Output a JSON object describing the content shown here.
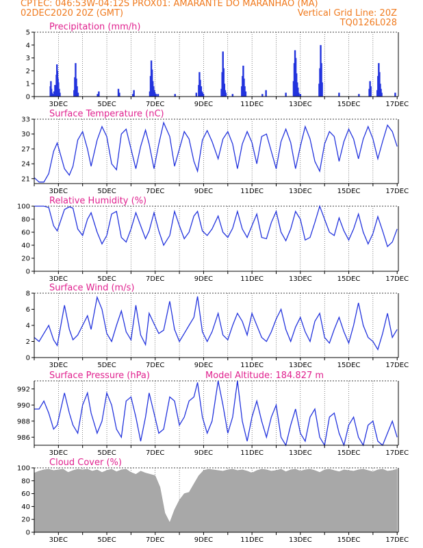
{
  "header": {
    "line1_left": "CPTEC:  046:53W-04:12S  PROX01: AMARANTE DO MARANHAO (MA)",
    "line2_left": "02DEC2020 20Z (GMT)",
    "line2_right": "Vertical Grid Line: 20Z",
    "line3_right": "TQ0126L028"
  },
  "colors": {
    "header": "#f07a1e",
    "title": "#e0208e",
    "series": "#2233dd",
    "cloud": "#a8a8a8"
  },
  "chart_data": [
    {
      "type": "bar",
      "title": "Precipitation (mm/h)",
      "ylim": [
        0,
        5
      ],
      "yticks": [
        0,
        1,
        2,
        3,
        4,
        5
      ],
      "xticklabels": [
        "3DEC",
        "5DEC",
        "7DEC",
        "9DEC",
        "11DEC",
        "13DEC",
        "15DEC",
        "17DEC"
      ],
      "series_days": [
        [
          2.9,
          3.05,
          0.9
        ],
        [
          3.6,
          3.75,
          0.6
        ],
        [
          4.5,
          4.6,
          0.3
        ],
        [
          5.45,
          5.55,
          0.5
        ],
        [
          6.0,
          6.15,
          0.4
        ],
        [
          6.75,
          6.95,
          2.8
        ],
        [
          8.85,
          9.05,
          1.6
        ],
        [
          9.7,
          9.85,
          3.5
        ],
        [
          10.5,
          10.65,
          2.5
        ],
        [
          12.6,
          12.85,
          3.6
        ],
        [
          13.7,
          13.85,
          4.0
        ],
        [
          15.7,
          15.85,
          1.4
        ],
        [
          16.1,
          16.25,
          2.6
        ],
        [
          16.85,
          16.95,
          0.3
        ]
      ],
      "values_note": "",
      "x": [
        2.67,
        2.69,
        2.71,
        2.73,
        2.76,
        2.82,
        2.86,
        2.92,
        2.94,
        2.96,
        2.98,
        3.0,
        3.03,
        3.06,
        3.65,
        3.68,
        3.71,
        3.74,
        3.77,
        3.81,
        4.62,
        4.67,
        5.48,
        5.52,
        6.08,
        6.12,
        6.78,
        6.81,
        6.84,
        6.87,
        6.9,
        6.93,
        6.96,
        6.99,
        7.04,
        7.12,
        7.82,
        8.7,
        8.8,
        8.83,
        8.86,
        8.9,
        8.93,
        8.96,
        8.99,
        9.74,
        9.77,
        9.8,
        9.83,
        9.86,
        9.89,
        9.92,
        10.2,
        10.58,
        10.61,
        10.64,
        10.67,
        10.7,
        10.74,
        11.43,
        11.58,
        12.4,
        12.72,
        12.75,
        12.78,
        12.81,
        12.84,
        12.87,
        12.9,
        12.93,
        13.0,
        13.78,
        13.81,
        13.84,
        13.87,
        13.9,
        14.6,
        15.42,
        15.85,
        15.88,
        15.91,
        16.18,
        16.21,
        16.24,
        16.27,
        16.3,
        16.33,
        16.36,
        16.92
      ],
      "values": [
        0.8,
        1.2,
        0.6,
        0.3,
        0.2,
        0.4,
        0.9,
        1.7,
        2.5,
        2.0,
        1.4,
        1.1,
        0.6,
        0.3,
        0.5,
        1.5,
        2.6,
        1.4,
        0.8,
        0.3,
        0.2,
        0.4,
        0.6,
        0.3,
        0.2,
        0.5,
        0.4,
        1.6,
        2.8,
        2.1,
        1.2,
        0.8,
        0.5,
        0.3,
        0.2,
        0.2,
        0.2,
        0.3,
        0.9,
        1.9,
        1.3,
        0.8,
        0.4,
        0.3,
        0.2,
        0.6,
        1.9,
        3.5,
        2.2,
        1.0,
        0.5,
        0.3,
        0.2,
        0.8,
        1.6,
        2.4,
        1.4,
        0.8,
        0.4,
        0.2,
        0.5,
        0.3,
        1.2,
        2.6,
        3.6,
        3.0,
        1.8,
        1.1,
        0.7,
        0.3,
        0.2,
        1.0,
        2.2,
        4.0,
        2.6,
        1.1,
        0.3,
        0.2,
        0.6,
        1.2,
        0.8,
        0.5,
        1.6,
        2.6,
        1.9,
        1.0,
        0.6,
        0.3,
        0.3
      ]
    },
    {
      "type": "line",
      "title": "Surface Temperature (nC)",
      "ylim": [
        20,
        33
      ],
      "yticks": [
        21,
        24,
        27,
        30,
        33
      ],
      "xticklabels": [
        "3DEC",
        "5DEC",
        "7DEC",
        "9DEC",
        "11DEC",
        "13DEC",
        "15DEC",
        "17DEC"
      ],
      "x": [
        2.0,
        2.2,
        2.4,
        2.6,
        2.8,
        2.95,
        3.25,
        3.45,
        3.6,
        3.8,
        4.0,
        4.2,
        4.35,
        4.6,
        4.8,
        5.0,
        5.2,
        5.4,
        5.6,
        5.8,
        6.0,
        6.2,
        6.4,
        6.6,
        6.75,
        6.95,
        7.15,
        7.35,
        7.6,
        7.8,
        8.0,
        8.2,
        8.4,
        8.6,
        8.75,
        8.95,
        9.15,
        9.35,
        9.6,
        9.8,
        10.0,
        10.2,
        10.4,
        10.6,
        10.8,
        11.0,
        11.2,
        11.4,
        11.6,
        11.8,
        12.0,
        12.2,
        12.4,
        12.6,
        12.8,
        13.0,
        13.2,
        13.4,
        13.6,
        13.8,
        14.0,
        14.2,
        14.4,
        14.6,
        14.8,
        15.0,
        15.2,
        15.4,
        15.6,
        15.8,
        16.0,
        16.2,
        16.4,
        16.6,
        16.8,
        17.0
      ],
      "values": [
        21.2,
        20.3,
        20.3,
        22.0,
        26.5,
        28.2,
        23.0,
        21.7,
        23.5,
        28.8,
        30.5,
        27.0,
        23.5,
        28.8,
        31.5,
        29.5,
        24.0,
        22.8,
        30.0,
        31.0,
        27.0,
        23.0,
        27.5,
        30.8,
        28.0,
        23.0,
        28.0,
        32.3,
        29.5,
        23.5,
        27.0,
        30.5,
        29.0,
        24.5,
        22.5,
        28.8,
        30.7,
        28.5,
        25.0,
        29.0,
        30.5,
        28.0,
        23.0,
        28.0,
        30.5,
        28.3,
        24.0,
        29.5,
        30.0,
        26.5,
        23.0,
        28.5,
        31.0,
        28.3,
        23.0,
        27.5,
        31.5,
        29.0,
        24.5,
        22.5,
        28.0,
        30.5,
        29.5,
        24.5,
        28.5,
        31.0,
        29.0,
        25.0,
        29.0,
        31.5,
        29.0,
        25.0,
        28.5,
        31.8,
        30.5,
        27.5
      ]
    },
    {
      "type": "line",
      "title": "Relative Humidity (%)",
      "ylim": [
        0,
        100
      ],
      "yticks": [
        0,
        20,
        40,
        60,
        80,
        100
      ],
      "xticklabels": [
        "3DEC",
        "5DEC",
        "7DEC",
        "9DEC",
        "11DEC",
        "13DEC",
        "15DEC",
        "17DEC"
      ],
      "x": [
        2.0,
        2.2,
        2.4,
        2.6,
        2.8,
        2.95,
        3.25,
        3.45,
        3.6,
        3.8,
        4.0,
        4.2,
        4.35,
        4.6,
        4.8,
        5.0,
        5.2,
        5.4,
        5.6,
        5.8,
        6.0,
        6.2,
        6.4,
        6.6,
        6.75,
        6.95,
        7.15,
        7.35,
        7.6,
        7.8,
        8.0,
        8.2,
        8.4,
        8.6,
        8.75,
        8.95,
        9.15,
        9.35,
        9.6,
        9.8,
        10.0,
        10.2,
        10.4,
        10.6,
        10.8,
        11.0,
        11.2,
        11.4,
        11.6,
        11.8,
        12.0,
        12.2,
        12.4,
        12.6,
        12.8,
        13.0,
        13.2,
        13.4,
        13.6,
        13.8,
        14.0,
        14.2,
        14.4,
        14.6,
        14.8,
        15.0,
        15.2,
        15.4,
        15.6,
        15.8,
        16.0,
        16.2,
        16.4,
        16.6,
        16.8,
        17.0
      ],
      "values": [
        100,
        100,
        100,
        98,
        70,
        62,
        95,
        99,
        97,
        65,
        55,
        80,
        90,
        60,
        42,
        55,
        88,
        92,
        52,
        45,
        65,
        90,
        70,
        50,
        62,
        90,
        62,
        40,
        55,
        92,
        70,
        50,
        60,
        85,
        92,
        62,
        55,
        65,
        85,
        60,
        52,
        66,
        92,
        65,
        52,
        70,
        88,
        52,
        50,
        75,
        92,
        60,
        47,
        65,
        92,
        80,
        48,
        52,
        75,
        100,
        80,
        60,
        55,
        82,
        62,
        48,
        65,
        88,
        60,
        42,
        58,
        84,
        62,
        38,
        45,
        65
      ]
    },
    {
      "type": "line",
      "title": "Surface Wind (m/s)",
      "ylim": [
        0,
        8
      ],
      "yticks": [
        0,
        2,
        4,
        6,
        8
      ],
      "xticklabels": [
        "3DEC",
        "5DEC",
        "7DEC",
        "9DEC",
        "11DEC",
        "13DEC",
        "15DEC",
        "17DEC"
      ],
      "x": [
        2.0,
        2.2,
        2.4,
        2.6,
        2.8,
        2.95,
        3.25,
        3.45,
        3.6,
        3.8,
        4.0,
        4.2,
        4.35,
        4.6,
        4.8,
        5.0,
        5.2,
        5.4,
        5.6,
        5.8,
        6.0,
        6.2,
        6.4,
        6.6,
        6.75,
        6.95,
        7.15,
        7.35,
        7.6,
        7.8,
        8.0,
        8.2,
        8.4,
        8.6,
        8.75,
        8.95,
        9.15,
        9.35,
        9.6,
        9.8,
        10.0,
        10.2,
        10.4,
        10.6,
        10.8,
        11.0,
        11.2,
        11.4,
        11.6,
        11.8,
        12.0,
        12.2,
        12.4,
        12.6,
        12.8,
        13.0,
        13.2,
        13.4,
        13.6,
        13.8,
        14.0,
        14.2,
        14.4,
        14.6,
        14.8,
        15.0,
        15.2,
        15.4,
        15.6,
        15.8,
        16.0,
        16.2,
        16.4,
        16.6,
        16.8,
        17.0
      ],
      "values": [
        2.5,
        2.0,
        3.0,
        4.0,
        2.2,
        1.5,
        6.5,
        3.5,
        2.2,
        2.8,
        4.0,
        5.2,
        3.5,
        7.5,
        6.0,
        3.0,
        2.0,
        4.0,
        5.8,
        3.2,
        2.2,
        6.5,
        2.8,
        1.6,
        5.5,
        4.2,
        3.0,
        3.4,
        7.0,
        3.5,
        2.0,
        3.0,
        4.0,
        5.0,
        7.6,
        3.2,
        2.0,
        3.2,
        5.5,
        2.8,
        2.2,
        4.0,
        5.5,
        4.5,
        2.8,
        5.5,
        4.0,
        2.5,
        2.0,
        3.2,
        4.8,
        6.0,
        3.5,
        2.0,
        3.8,
        5.0,
        3.2,
        2.0,
        4.5,
        5.5,
        2.5,
        1.8,
        3.5,
        5.0,
        3.2,
        1.8,
        4.0,
        6.8,
        4.0,
        2.5,
        2.0,
        1.0,
        3.0,
        5.5,
        2.5,
        3.5
      ]
    },
    {
      "type": "line",
      "title": "Surface Pressure (hPa)",
      "annotation": "Model Altitude: 184.827 m",
      "ylim": [
        985,
        993
      ],
      "yticks": [
        986,
        988,
        990,
        992
      ],
      "xticklabels": [
        "3DEC",
        "5DEC",
        "7DEC",
        "9DEC",
        "11DEC",
        "13DEC",
        "15DEC",
        "17DEC"
      ],
      "x": [
        2.0,
        2.2,
        2.4,
        2.6,
        2.8,
        2.95,
        3.25,
        3.45,
        3.6,
        3.8,
        4.0,
        4.2,
        4.35,
        4.6,
        4.8,
        5.0,
        5.2,
        5.4,
        5.6,
        5.8,
        6.0,
        6.2,
        6.4,
        6.6,
        6.75,
        6.95,
        7.15,
        7.35,
        7.6,
        7.8,
        8.0,
        8.2,
        8.4,
        8.6,
        8.75,
        8.95,
        9.15,
        9.35,
        9.6,
        9.8,
        10.0,
        10.2,
        10.4,
        10.6,
        10.8,
        11.0,
        11.2,
        11.4,
        11.6,
        11.8,
        12.0,
        12.2,
        12.4,
        12.6,
        12.8,
        13.0,
        13.2,
        13.4,
        13.6,
        13.8,
        14.0,
        14.2,
        14.4,
        14.6,
        14.8,
        15.0,
        15.2,
        15.4,
        15.6,
        15.8,
        16.0,
        16.2,
        16.4,
        16.6,
        16.8,
        17.0
      ],
      "values": [
        989.5,
        989.5,
        990.5,
        989.0,
        987.0,
        987.5,
        991.5,
        989.0,
        987.5,
        986.5,
        990.0,
        991.5,
        989.0,
        986.5,
        988.0,
        991.5,
        990.0,
        987.0,
        986.0,
        990.5,
        991.0,
        988.5,
        985.5,
        988.5,
        991.5,
        989.0,
        986.5,
        987.0,
        991.0,
        990.5,
        987.5,
        988.5,
        990.5,
        991.0,
        992.8,
        988.5,
        986.5,
        988.0,
        993.0,
        990.0,
        986.5,
        988.5,
        993.0,
        988.0,
        985.5,
        988.5,
        990.5,
        988.0,
        986.0,
        988.5,
        990.0,
        986.0,
        985.0,
        987.5,
        989.5,
        986.5,
        985.5,
        988.5,
        989.5,
        986.0,
        985.0,
        988.5,
        989.0,
        986.5,
        985.0,
        987.5,
        988.5,
        986.0,
        985.0,
        987.5,
        988.0,
        985.5,
        985.0,
        986.5,
        988.0,
        986.0
      ]
    },
    {
      "type": "area",
      "title": "Cloud Cover (%)",
      "ylim": [
        0,
        100
      ],
      "yticks": [
        0,
        20,
        40,
        60,
        80,
        100
      ],
      "xticklabels": [
        "3DEC",
        "5DEC",
        "7DEC",
        "9DEC",
        "11DEC",
        "13DEC",
        "15DEC",
        "17DEC"
      ],
      "x": [
        2.0,
        2.2,
        2.4,
        2.6,
        2.8,
        3.0,
        3.2,
        3.4,
        3.6,
        3.8,
        4.0,
        4.2,
        4.4,
        4.6,
        4.8,
        5.0,
        5.2,
        5.4,
        5.6,
        5.8,
        6.0,
        6.2,
        6.4,
        6.6,
        6.8,
        7.0,
        7.2,
        7.4,
        7.6,
        7.8,
        8.0,
        8.2,
        8.4,
        8.6,
        8.8,
        9.0,
        9.2,
        9.4,
        9.6,
        9.8,
        10.0,
        10.2,
        10.4,
        10.6,
        10.8,
        11.0,
        11.2,
        11.4,
        11.6,
        11.8,
        12.0,
        12.2,
        12.4,
        12.6,
        12.8,
        13.0,
        13.2,
        13.4,
        13.6,
        13.8,
        14.0,
        14.2,
        14.4,
        14.6,
        14.8,
        15.0,
        15.2,
        15.4,
        15.6,
        15.8,
        16.0,
        16.2,
        16.4,
        16.6,
        16.8,
        17.0
      ],
      "values": [
        92,
        95,
        97,
        98,
        96,
        97,
        98,
        93,
        96,
        98,
        97,
        98,
        95,
        97,
        93,
        96,
        98,
        94,
        97,
        98,
        93,
        90,
        95,
        92,
        90,
        88,
        70,
        30,
        15,
        35,
        50,
        60,
        62,
        75,
        88,
        96,
        98,
        97,
        96,
        95,
        97,
        98,
        96,
        97,
        95,
        92,
        96,
        98,
        97,
        95,
        96,
        98,
        94,
        97,
        98,
        95,
        97,
        98,
        96,
        93,
        97,
        98,
        96,
        94,
        97,
        96,
        95,
        97,
        98,
        96,
        94,
        97,
        98,
        95,
        96,
        98
      ]
    }
  ]
}
